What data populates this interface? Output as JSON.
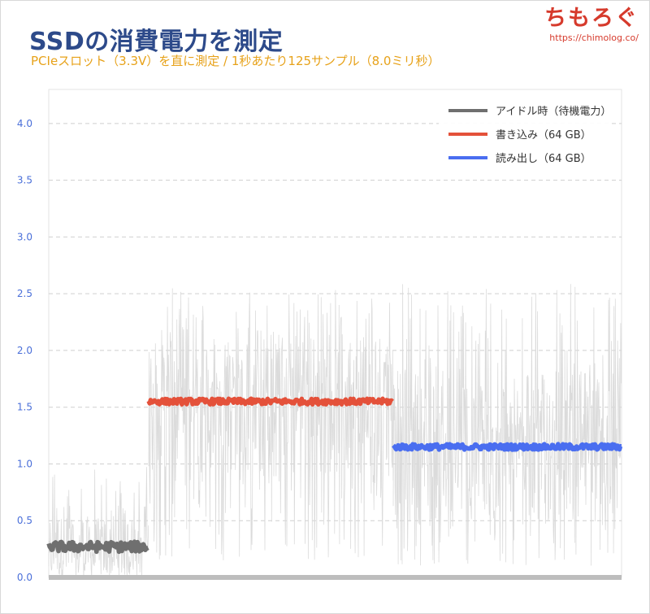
{
  "header": {
    "title": "SSDの消費電力を測定",
    "subtitle": "PCIeスロット（3.3V）を直に測定 / 1秒あたり125サンプル（8.0ミリ秒）"
  },
  "logo": {
    "text": "ちもろぐ",
    "url": "https://chimolog.co/"
  },
  "chart_data": {
    "type": "line",
    "title": "SSDの消費電力を測定",
    "subtitle": "PCIeスロット（3.3V）を直に測定 / 1秒あたり125サンプル（8.0ミリ秒）",
    "xlabel": "",
    "ylabel": "",
    "ylim": [
      0,
      4.3
    ],
    "yticks": [
      "0.0",
      "0.5",
      "1.0",
      "1.5",
      "2.0",
      "2.5",
      "3.0",
      "3.5",
      "4.0"
    ],
    "grid": "horizontal dashed",
    "legend_position": "top-right",
    "raw_samples": {
      "color": "#d9d9d9",
      "segments": [
        {
          "mean": 0.27,
          "min": 0.0,
          "max": 1.0
        },
        {
          "mean": 1.55,
          "min": 0.15,
          "max": 2.55
        },
        {
          "mean": 1.15,
          "min": 0.1,
          "max": 2.6
        }
      ]
    },
    "series": [
      {
        "name": "アイドル時（待機電力）",
        "color": "#6f6f6f",
        "segment": 0,
        "value": 0.27
      },
      {
        "name": "書き込み（64 GB）",
        "color": "#e4513a",
        "segment": 1,
        "value": 1.55
      },
      {
        "name": "読み出し（64 GB）",
        "color": "#4a6ef0",
        "segment": 2,
        "value": 1.15
      }
    ]
  }
}
